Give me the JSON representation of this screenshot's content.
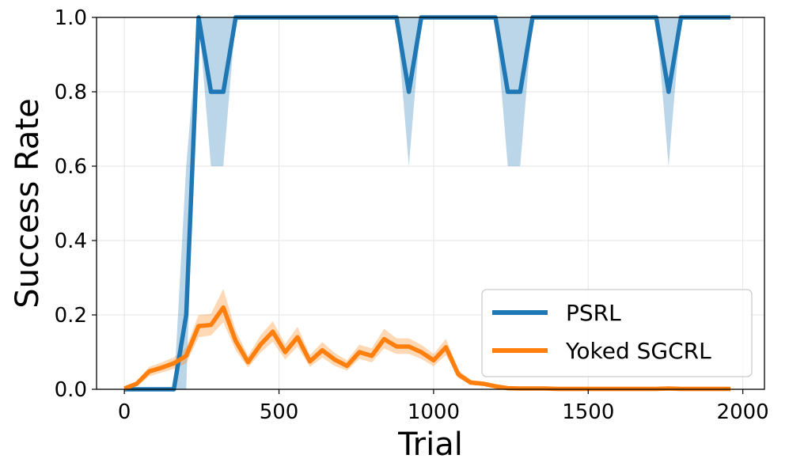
{
  "chart_data": {
    "type": "line",
    "title": "",
    "xlabel": "Trial",
    "ylabel": "Success Rate",
    "xlim": [
      -90,
      2070
    ],
    "ylim": [
      0,
      1.0
    ],
    "xticks": [
      0,
      500,
      1000,
      1500,
      2000
    ],
    "xtick_labels": [
      "0",
      "500",
      "1000",
      "1500",
      "2000"
    ],
    "yticks": [
      0.0,
      0.2,
      0.4,
      0.6,
      0.8,
      1.0
    ],
    "ytick_labels": [
      "0.0",
      "0.2",
      "0.4",
      "0.6",
      "0.8",
      "1.0"
    ],
    "grid": true,
    "legend_position": "lower-right",
    "series": [
      {
        "name": "PSRL",
        "color": "#1f77b4",
        "x": [
          0,
          40,
          80,
          120,
          160,
          200,
          240,
          280,
          320,
          360,
          400,
          440,
          480,
          520,
          560,
          600,
          640,
          680,
          720,
          760,
          800,
          840,
          880,
          920,
          960,
          1000,
          1040,
          1080,
          1120,
          1160,
          1200,
          1240,
          1280,
          1320,
          1360,
          1400,
          1440,
          1480,
          1520,
          1560,
          1600,
          1640,
          1680,
          1720,
          1760,
          1800,
          1840,
          1880,
          1920,
          1960
        ],
        "y": [
          0,
          0,
          0,
          0,
          0,
          0.2,
          1.0,
          0.8,
          0.8,
          1.0,
          1.0,
          1.0,
          1.0,
          1.0,
          1.0,
          1.0,
          1.0,
          1.0,
          1.0,
          1.0,
          1.0,
          1.0,
          1.0,
          0.8,
          1.0,
          1.0,
          1.0,
          1.0,
          1.0,
          1.0,
          1.0,
          0.8,
          0.8,
          1.0,
          1.0,
          1.0,
          1.0,
          1.0,
          1.0,
          1.0,
          1.0,
          1.0,
          1.0,
          1.0,
          0.8,
          1.0,
          1.0,
          1.0,
          1.0,
          1.0
        ],
        "lower": [
          0,
          0,
          0,
          0,
          0,
          0,
          1.0,
          0.6,
          0.6,
          1.0,
          1.0,
          1.0,
          1.0,
          1.0,
          1.0,
          1.0,
          1.0,
          1.0,
          1.0,
          1.0,
          1.0,
          1.0,
          1.0,
          0.6,
          1.0,
          1.0,
          1.0,
          1.0,
          1.0,
          1.0,
          1.0,
          0.6,
          0.6,
          1.0,
          1.0,
          1.0,
          1.0,
          1.0,
          1.0,
          1.0,
          1.0,
          1.0,
          1.0,
          1.0,
          0.6,
          1.0,
          1.0,
          1.0,
          1.0,
          1.0
        ],
        "upper": [
          0,
          0,
          0,
          0,
          0,
          0.6,
          1.0,
          1.0,
          1.0,
          1.0,
          1.0,
          1.0,
          1.0,
          1.0,
          1.0,
          1.0,
          1.0,
          1.0,
          1.0,
          1.0,
          1.0,
          1.0,
          1.0,
          1.0,
          1.0,
          1.0,
          1.0,
          1.0,
          1.0,
          1.0,
          1.0,
          1.0,
          1.0,
          1.0,
          1.0,
          1.0,
          1.0,
          1.0,
          1.0,
          1.0,
          1.0,
          1.0,
          1.0,
          1.0,
          1.0,
          1.0,
          1.0,
          1.0,
          1.0,
          1.0
        ]
      },
      {
        "name": "Yoked SGCRL",
        "color": "#ff7f0e",
        "x": [
          0,
          40,
          80,
          120,
          160,
          200,
          240,
          280,
          320,
          360,
          400,
          440,
          480,
          520,
          560,
          600,
          640,
          680,
          720,
          760,
          800,
          840,
          880,
          920,
          960,
          1000,
          1040,
          1080,
          1120,
          1160,
          1200,
          1240,
          1280,
          1320,
          1360,
          1400,
          1440,
          1480,
          1520,
          1560,
          1600,
          1640,
          1680,
          1720,
          1760,
          1800,
          1840,
          1880,
          1920,
          1960
        ],
        "y": [
          0.002,
          0.015,
          0.048,
          0.058,
          0.07,
          0.09,
          0.17,
          0.173,
          0.22,
          0.13,
          0.073,
          0.12,
          0.155,
          0.1,
          0.14,
          0.075,
          0.105,
          0.08,
          0.063,
          0.1,
          0.09,
          0.135,
          0.115,
          0.115,
          0.1,
          0.078,
          0.113,
          0.04,
          0.018,
          0.015,
          0.008,
          0.003,
          0.002,
          0.002,
          0.002,
          0.001,
          0.001,
          0.001,
          0.001,
          0.001,
          0.001,
          0.001,
          0.001,
          0.001,
          0.002,
          0.001,
          0.001,
          0.001,
          0.001,
          0.001
        ],
        "lower": [
          0.0,
          0.008,
          0.035,
          0.045,
          0.055,
          0.07,
          0.14,
          0.145,
          0.18,
          0.105,
          0.058,
          0.098,
          0.128,
          0.08,
          0.115,
          0.06,
          0.085,
          0.063,
          0.05,
          0.082,
          0.072,
          0.11,
          0.095,
          0.095,
          0.082,
          0.062,
          0.092,
          0.03,
          0.012,
          0.01,
          0.004,
          0.001,
          0.0,
          0.0,
          0.0,
          0.0,
          0.0,
          0.0,
          0.0,
          0.0,
          0.0,
          0.0,
          0.0,
          0.0,
          0.0,
          0.0,
          0.0,
          0.0,
          0.0,
          0.0
        ],
        "upper": [
          0.005,
          0.022,
          0.06,
          0.072,
          0.086,
          0.112,
          0.2,
          0.203,
          0.27,
          0.158,
          0.09,
          0.145,
          0.183,
          0.122,
          0.168,
          0.092,
          0.127,
          0.098,
          0.078,
          0.12,
          0.11,
          0.163,
          0.137,
          0.137,
          0.12,
          0.095,
          0.136,
          0.052,
          0.025,
          0.021,
          0.013,
          0.006,
          0.005,
          0.005,
          0.004,
          0.003,
          0.003,
          0.003,
          0.003,
          0.003,
          0.003,
          0.003,
          0.003,
          0.003,
          0.005,
          0.003,
          0.003,
          0.003,
          0.003,
          0.003
        ]
      }
    ]
  }
}
